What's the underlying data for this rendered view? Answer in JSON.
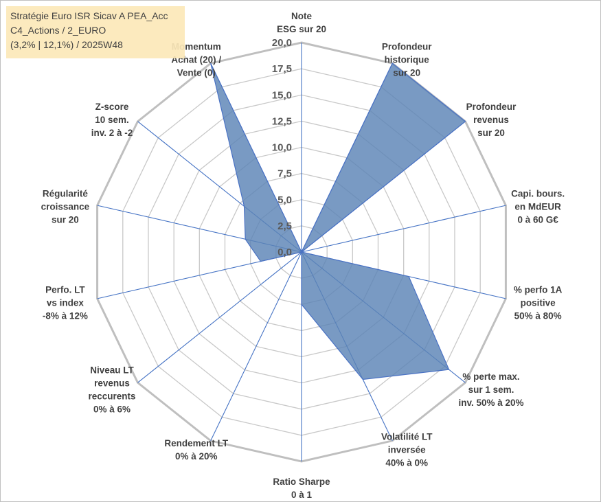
{
  "info_box": {
    "lines": [
      "Stratégie Euro ISR Sicav A PEA_Acc",
      "C4_Actions / 2_EURO",
      "(3,2% | 12,1%) / 2025W48"
    ]
  },
  "chart_data": {
    "type": "radar",
    "rlim": [
      0,
      20
    ],
    "grid": true,
    "ticks": [
      {
        "value": 0,
        "label": "0,0"
      },
      {
        "value": 2.5,
        "label": "2,5"
      },
      {
        "value": 5,
        "label": "5,0"
      },
      {
        "value": 7.5,
        "label": "7,5"
      },
      {
        "value": 10,
        "label": "10,0"
      },
      {
        "value": 12.5,
        "label": "12,5"
      },
      {
        "value": 15,
        "label": "15,0"
      },
      {
        "value": 17.5,
        "label": "17,5"
      },
      {
        "value": 20,
        "label": "20,0"
      }
    ],
    "axes": [
      [
        "Note",
        "ESG sur 20"
      ],
      [
        "Profondeur",
        "historique",
        "sur 20"
      ],
      [
        "Profondeur",
        "revenus",
        "sur 20"
      ],
      [
        "Capi. bours.",
        "en MdEUR",
        "0 à 60 G€"
      ],
      [
        "% perfo 1A",
        "positive",
        "50% à 80%"
      ],
      [
        "% perte max.",
        "sur 1 sem.",
        "inv. 50% à 20%"
      ],
      [
        "Volatilité LT",
        "inversée",
        "40% à 0%"
      ],
      [
        "Ratio Sharpe",
        "0 à 1"
      ],
      [
        "Rendement LT",
        "0% à 20%"
      ],
      [
        "Niveau LT",
        "revenus",
        "reccurents",
        "0% à 6%"
      ],
      [
        "Perfo. LT",
        "vs index",
        "-8% à 12%"
      ],
      [
        "Régularité",
        "croissance",
        "sur 20"
      ],
      [
        "Z-score",
        "10 sem.",
        "inv. 2 à -2"
      ],
      [
        "Momentum",
        "Achat (20) /",
        "Vente (0)"
      ]
    ],
    "values": [
      0,
      20,
      20,
      0,
      10.5,
      18,
      13.5,
      5,
      0,
      0,
      4,
      5.5,
      7,
      20
    ],
    "colors": {
      "fill": "#5b84b6",
      "stroke": "#4a72c4",
      "grid": "#c8c8c8",
      "outer": "#bfbfbf",
      "spoke": "#4472c4"
    }
  }
}
